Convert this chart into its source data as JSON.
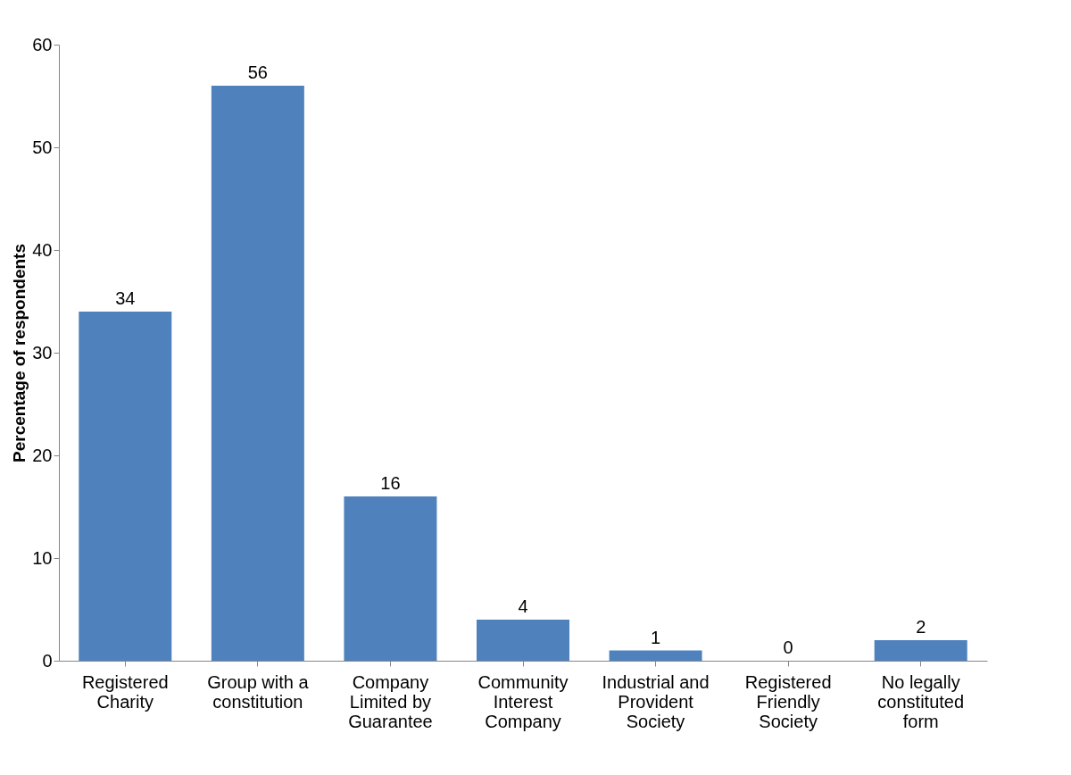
{
  "chart_data": {
    "type": "bar",
    "ylabel": "Percentage of respondents",
    "categories": [
      "Registered Charity",
      "Group with a constitution",
      "Company Limited by Guarantee",
      "Community Interest Company",
      "Industrial and Provident Society",
      "Registered Friendly Society",
      "No legally constituted form"
    ],
    "values": [
      34,
      56,
      16,
      4,
      1,
      0,
      2
    ],
    "color": "#4f81bd",
    "ylim": [
      0,
      60
    ],
    "yticks": [
      0,
      10,
      20,
      30,
      40,
      50,
      60
    ],
    "grid": false,
    "data_labels": true
  }
}
